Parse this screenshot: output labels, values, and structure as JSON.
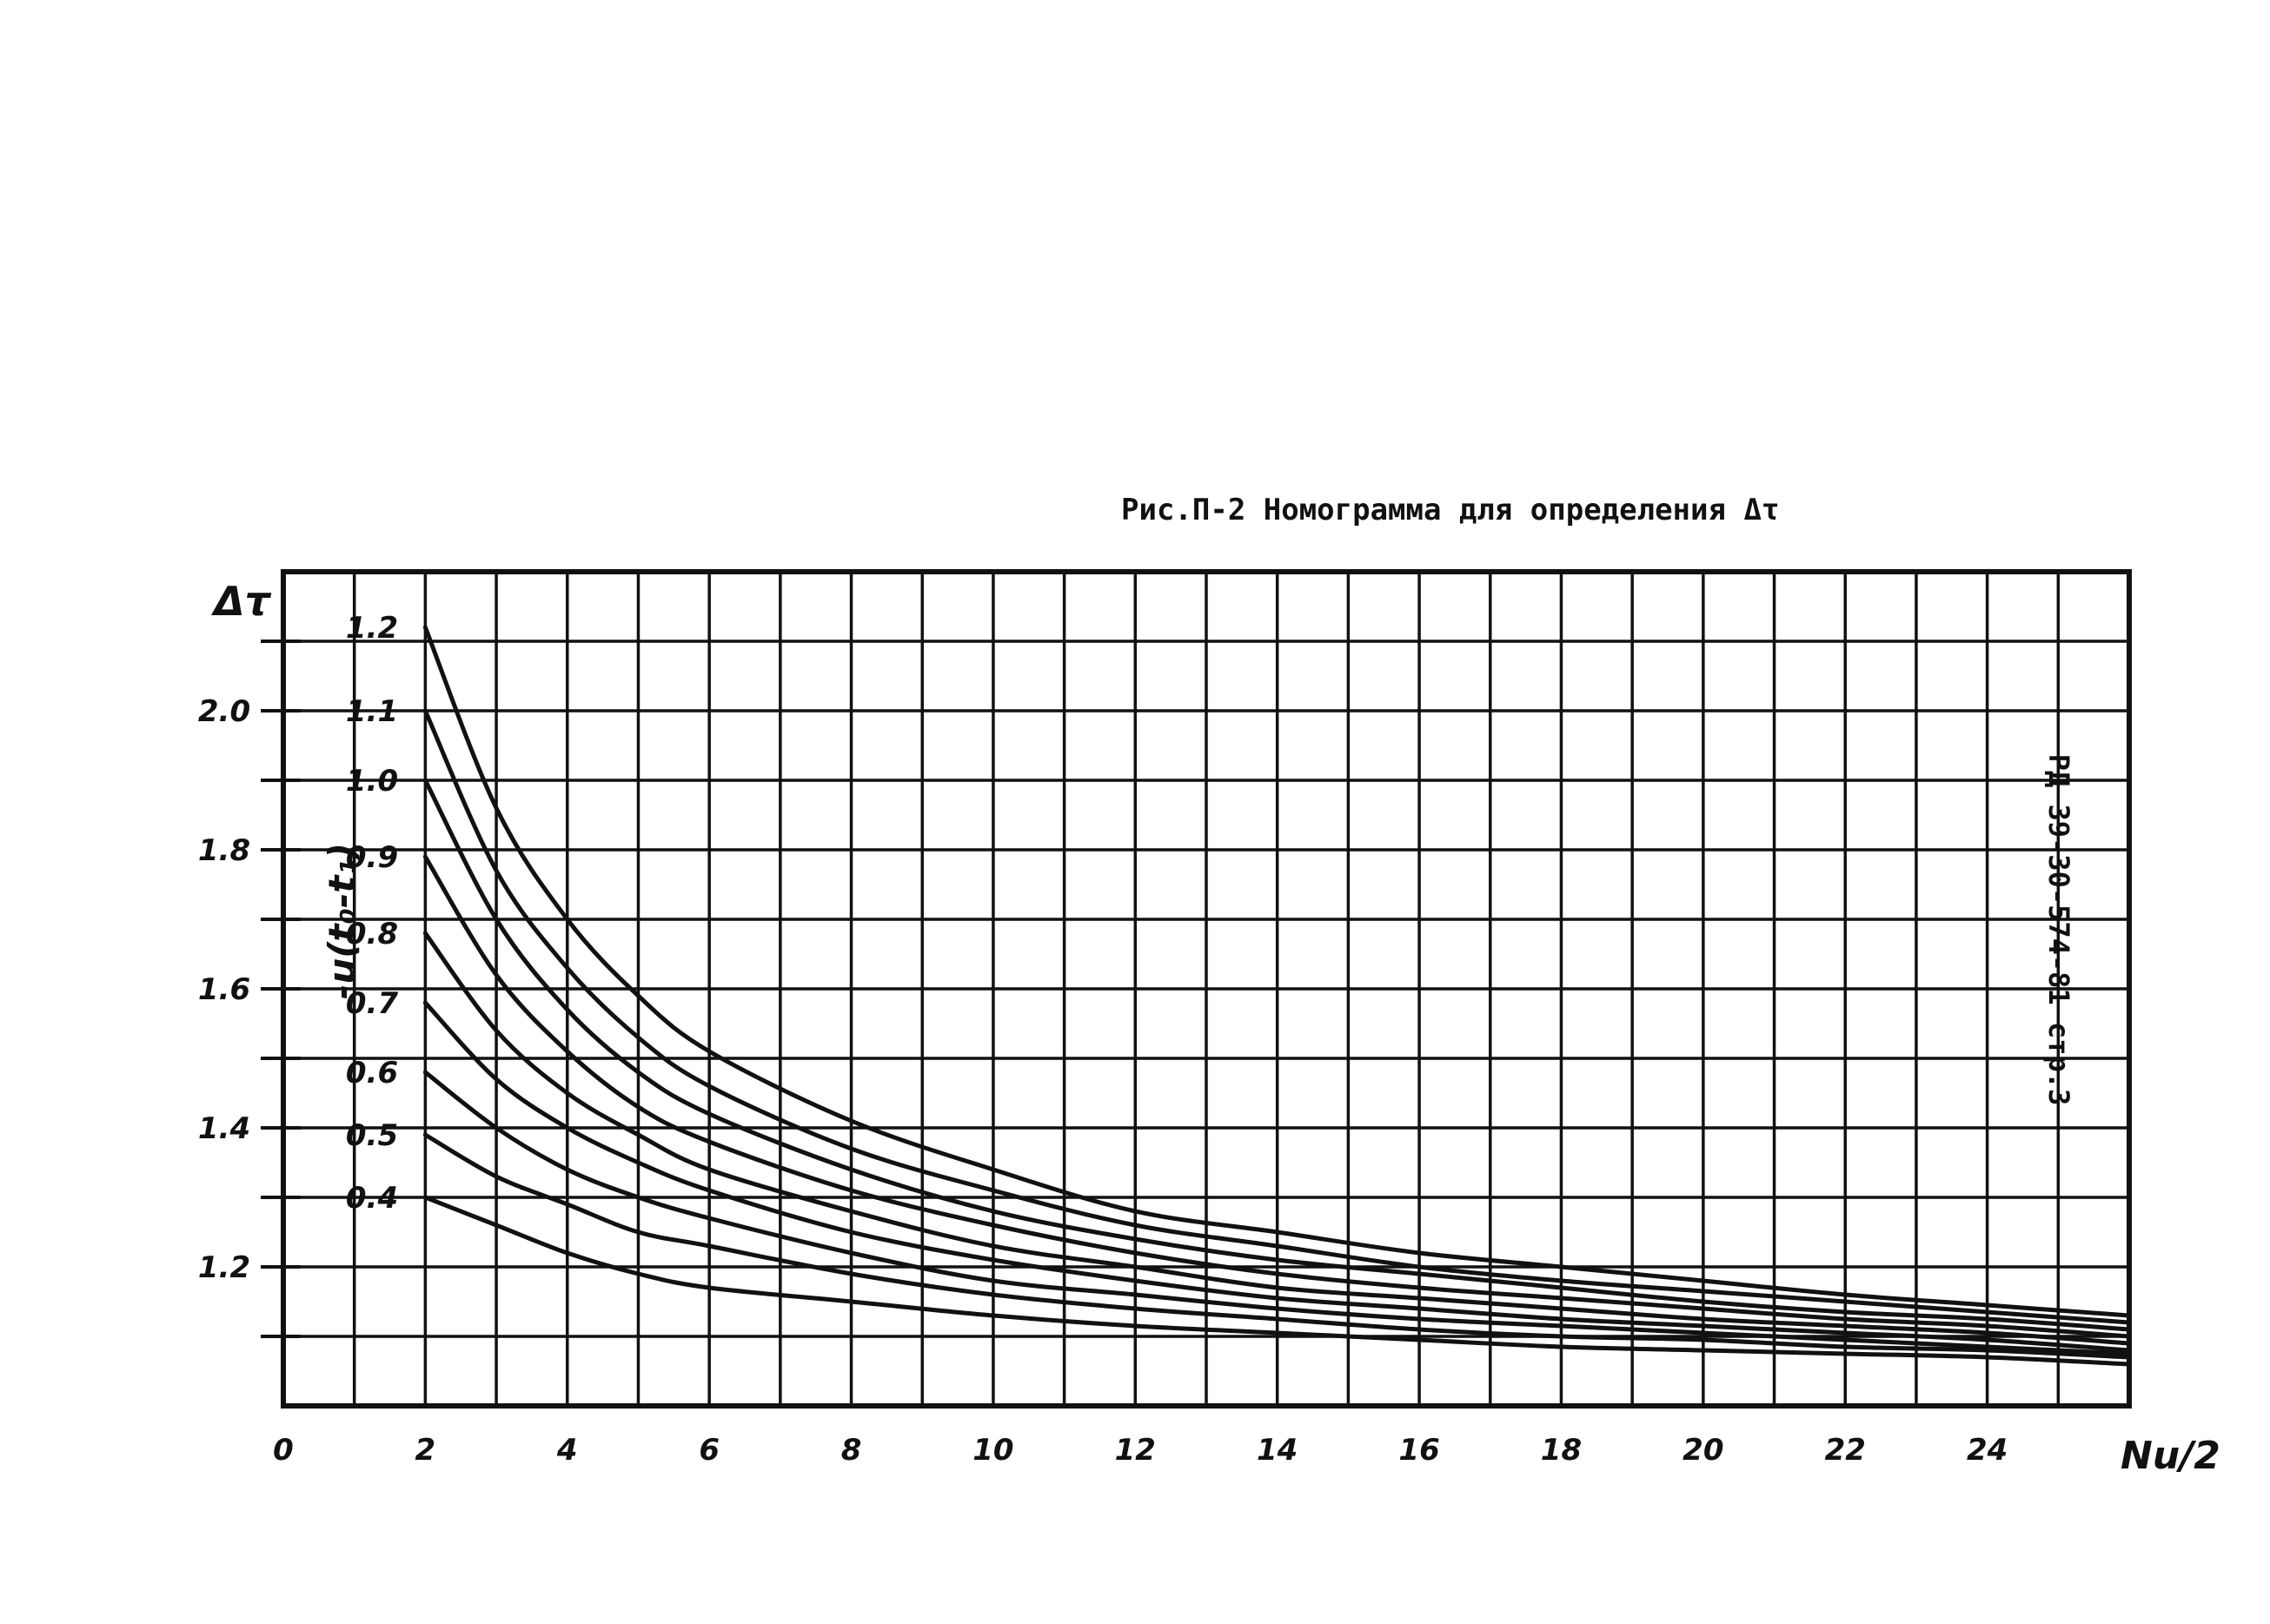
{
  "chart_data": {
    "type": "line",
    "title": "Рис.П-2  Номограмма для определения Δτ",
    "side_note": "РД 39-30-574-81  стр.3",
    "xlabel": "Nu/2",
    "ylabel_left": "Δτ",
    "ylabel_curves": "-u(t₀-t₁)",
    "x_ticks": [
      "0",
      "2",
      "4",
      "6",
      "8",
      "10",
      "12",
      "14",
      "16",
      "18",
      "20",
      "22",
      "24"
    ],
    "y_ticks_left": [
      "2.0",
      "1.8",
      "1.6",
      "1.4",
      "1.2"
    ],
    "curve_labels": [
      "1.2",
      "1.1",
      "1.0",
      "0.9",
      "0.8",
      "0.7",
      "0.6",
      "0.5",
      "0.4"
    ],
    "xlim": [
      0,
      26
    ],
    "ylim": [
      1.0,
      2.2
    ],
    "grid": true,
    "series": [
      {
        "name": "1.2",
        "x": [
          2,
          3,
          4,
          5,
          6,
          8,
          10,
          12,
          14,
          16,
          18,
          20,
          22,
          24,
          26
        ],
        "y": [
          2.12,
          1.86,
          1.7,
          1.59,
          1.51,
          1.41,
          1.34,
          1.28,
          1.25,
          1.22,
          1.2,
          1.18,
          1.16,
          1.145,
          1.13
        ]
      },
      {
        "name": "1.1",
        "x": [
          2,
          3,
          4,
          5,
          6,
          8,
          10,
          12,
          14,
          16,
          18,
          20,
          22,
          24,
          26
        ],
        "y": [
          2.0,
          1.77,
          1.63,
          1.53,
          1.46,
          1.37,
          1.31,
          1.26,
          1.23,
          1.2,
          1.18,
          1.165,
          1.15,
          1.135,
          1.12
        ]
      },
      {
        "name": "1.0",
        "x": [
          2,
          3,
          4,
          5,
          6,
          8,
          10,
          12,
          14,
          16,
          18,
          20,
          22,
          24,
          26
        ],
        "y": [
          1.9,
          1.7,
          1.57,
          1.48,
          1.42,
          1.34,
          1.28,
          1.24,
          1.21,
          1.19,
          1.17,
          1.15,
          1.135,
          1.125,
          1.11
        ]
      },
      {
        "name": "0.9",
        "x": [
          2,
          3,
          4,
          5,
          6,
          8,
          10,
          12,
          14,
          16,
          18,
          20,
          22,
          24,
          26
        ],
        "y": [
          1.79,
          1.62,
          1.51,
          1.43,
          1.38,
          1.31,
          1.26,
          1.22,
          1.19,
          1.17,
          1.155,
          1.14,
          1.125,
          1.115,
          1.1
        ]
      },
      {
        "name": "0.8",
        "x": [
          2,
          3,
          4,
          5,
          6,
          8,
          10,
          12,
          14,
          16,
          18,
          20,
          22,
          24,
          26
        ],
        "y": [
          1.68,
          1.54,
          1.45,
          1.39,
          1.34,
          1.28,
          1.23,
          1.2,
          1.17,
          1.155,
          1.14,
          1.125,
          1.115,
          1.105,
          1.09
        ]
      },
      {
        "name": "0.7",
        "x": [
          2,
          3,
          4,
          5,
          6,
          8,
          10,
          12,
          14,
          16,
          18,
          20,
          22,
          24,
          26
        ],
        "y": [
          1.58,
          1.47,
          1.4,
          1.35,
          1.31,
          1.25,
          1.21,
          1.18,
          1.155,
          1.14,
          1.125,
          1.115,
          1.105,
          1.095,
          1.08
        ]
      },
      {
        "name": "0.6",
        "x": [
          2,
          3,
          4,
          5,
          6,
          8,
          10,
          12,
          14,
          16,
          18,
          20,
          22,
          24,
          26
        ],
        "y": [
          1.48,
          1.4,
          1.34,
          1.3,
          1.27,
          1.22,
          1.18,
          1.16,
          1.14,
          1.125,
          1.115,
          1.105,
          1.095,
          1.085,
          1.075
        ]
      },
      {
        "name": "0.5",
        "x": [
          2,
          3,
          4,
          5,
          6,
          8,
          10,
          12,
          14,
          16,
          18,
          20,
          22,
          24,
          26
        ],
        "y": [
          1.39,
          1.33,
          1.29,
          1.25,
          1.23,
          1.19,
          1.16,
          1.14,
          1.125,
          1.11,
          1.1,
          1.095,
          1.085,
          1.08,
          1.07
        ]
      },
      {
        "name": "0.4",
        "x": [
          2,
          3,
          4,
          5,
          6,
          8,
          10,
          12,
          14,
          16,
          18,
          20,
          22,
          24,
          26
        ],
        "y": [
          1.3,
          1.26,
          1.22,
          1.19,
          1.17,
          1.15,
          1.13,
          1.115,
          1.105,
          1.095,
          1.085,
          1.08,
          1.075,
          1.07,
          1.06
        ]
      }
    ]
  }
}
